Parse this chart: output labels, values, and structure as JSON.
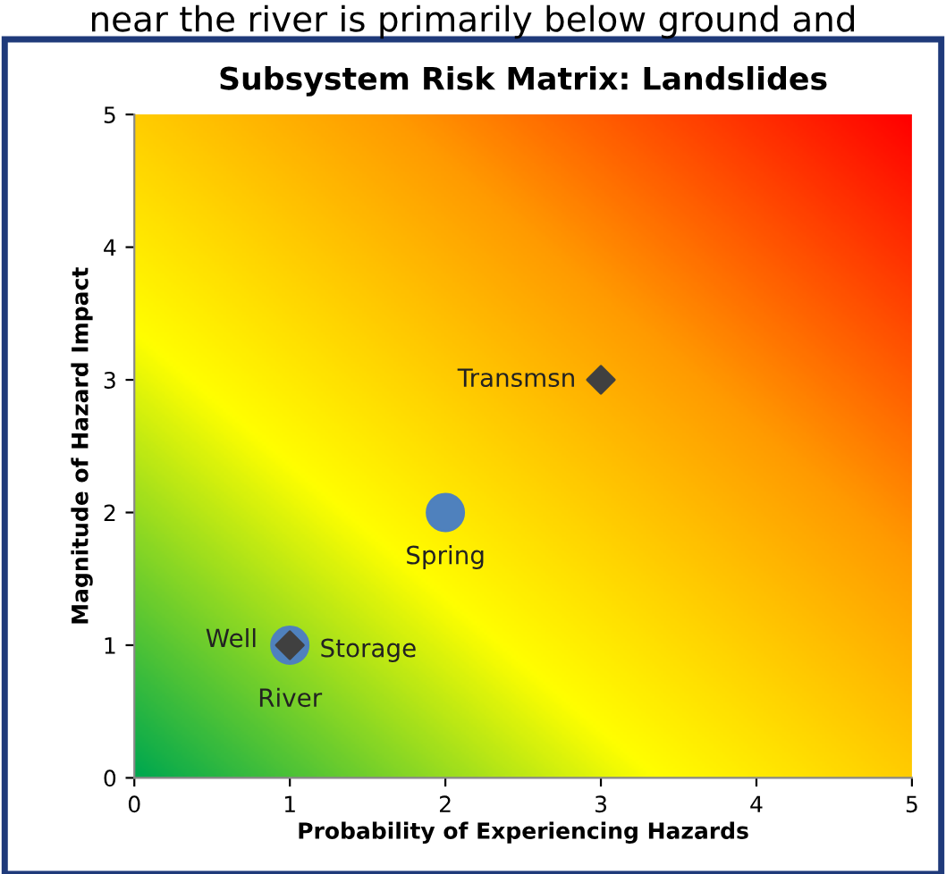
{
  "chart_data": {
    "type": "scatter",
    "title": "Subsystem Risk Matrix: Landslides",
    "xlabel": "Probability of Experiencing Hazards",
    "ylabel": "Magnitude of Hazard Impact",
    "series": [
      {
        "color": "#4f81bd",
        "marker": "circle",
        "x": [
          2,
          1
        ],
        "values": [
          2,
          1
        ]
      },
      {
        "color": "#404040",
        "marker": "diamond",
        "x": [
          3,
          1
        ],
        "values": [
          3,
          1
        ]
      }
    ],
    "annotations": [
      "near the river is primarily below ground and",
      {
        "text": "Transmsn",
        "x": 3,
        "y": 3
      },
      {
        "text": "Spring",
        "x": 2,
        "y": 2
      },
      {
        "text": "Well",
        "x": 1,
        "y": 1
      },
      {
        "text": "Storage",
        "x": 1,
        "y": 1
      },
      {
        "text": "River",
        "x": 1,
        "y": 1
      }
    ],
    "xlim": [
      0,
      5
    ],
    "ylim": [
      0,
      5
    ],
    "xticks": [
      0,
      1,
      2,
      3,
      4,
      5
    ],
    "yticks": [
      0,
      1,
      2,
      3,
      4,
      5
    ],
    "grid": false,
    "legend": false
  }
}
